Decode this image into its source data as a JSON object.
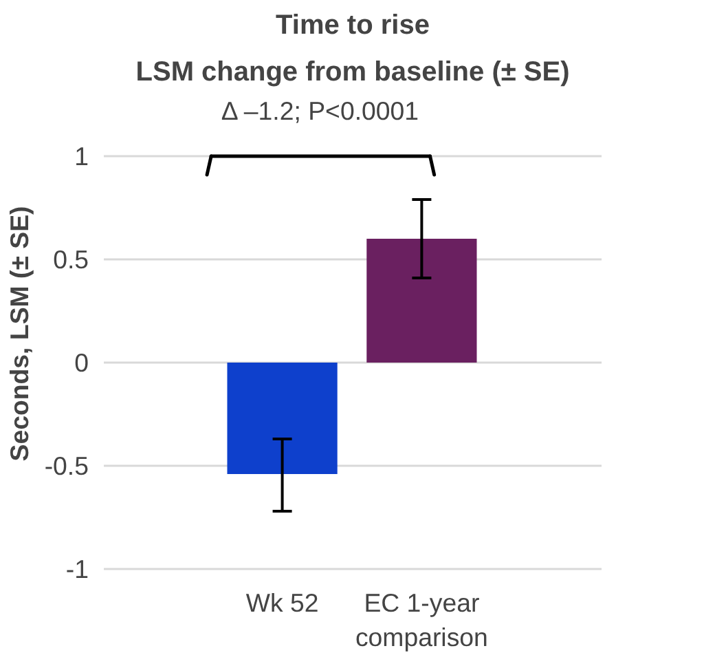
{
  "chart_data": {
    "type": "bar",
    "title": "Time to rise",
    "subtitle": "LSM change from baseline (± SE)",
    "ylabel": "Seconds, LSM (± SE)",
    "categories": [
      "Wk 52",
      "EC 1-year comparison"
    ],
    "values": [
      -0.54,
      0.6
    ],
    "colors": [
      "#0e40cc",
      "#6a2060"
    ],
    "errors": [
      [
        -0.72,
        -0.37
      ],
      [
        0.41,
        0.79
      ]
    ],
    "ylim": [
      -1,
      1
    ],
    "yticks": [
      -1,
      -0.5,
      0,
      0.5,
      1
    ],
    "grid": "y",
    "annotations": [
      "Δ –1.2; P<0.0001"
    ]
  }
}
